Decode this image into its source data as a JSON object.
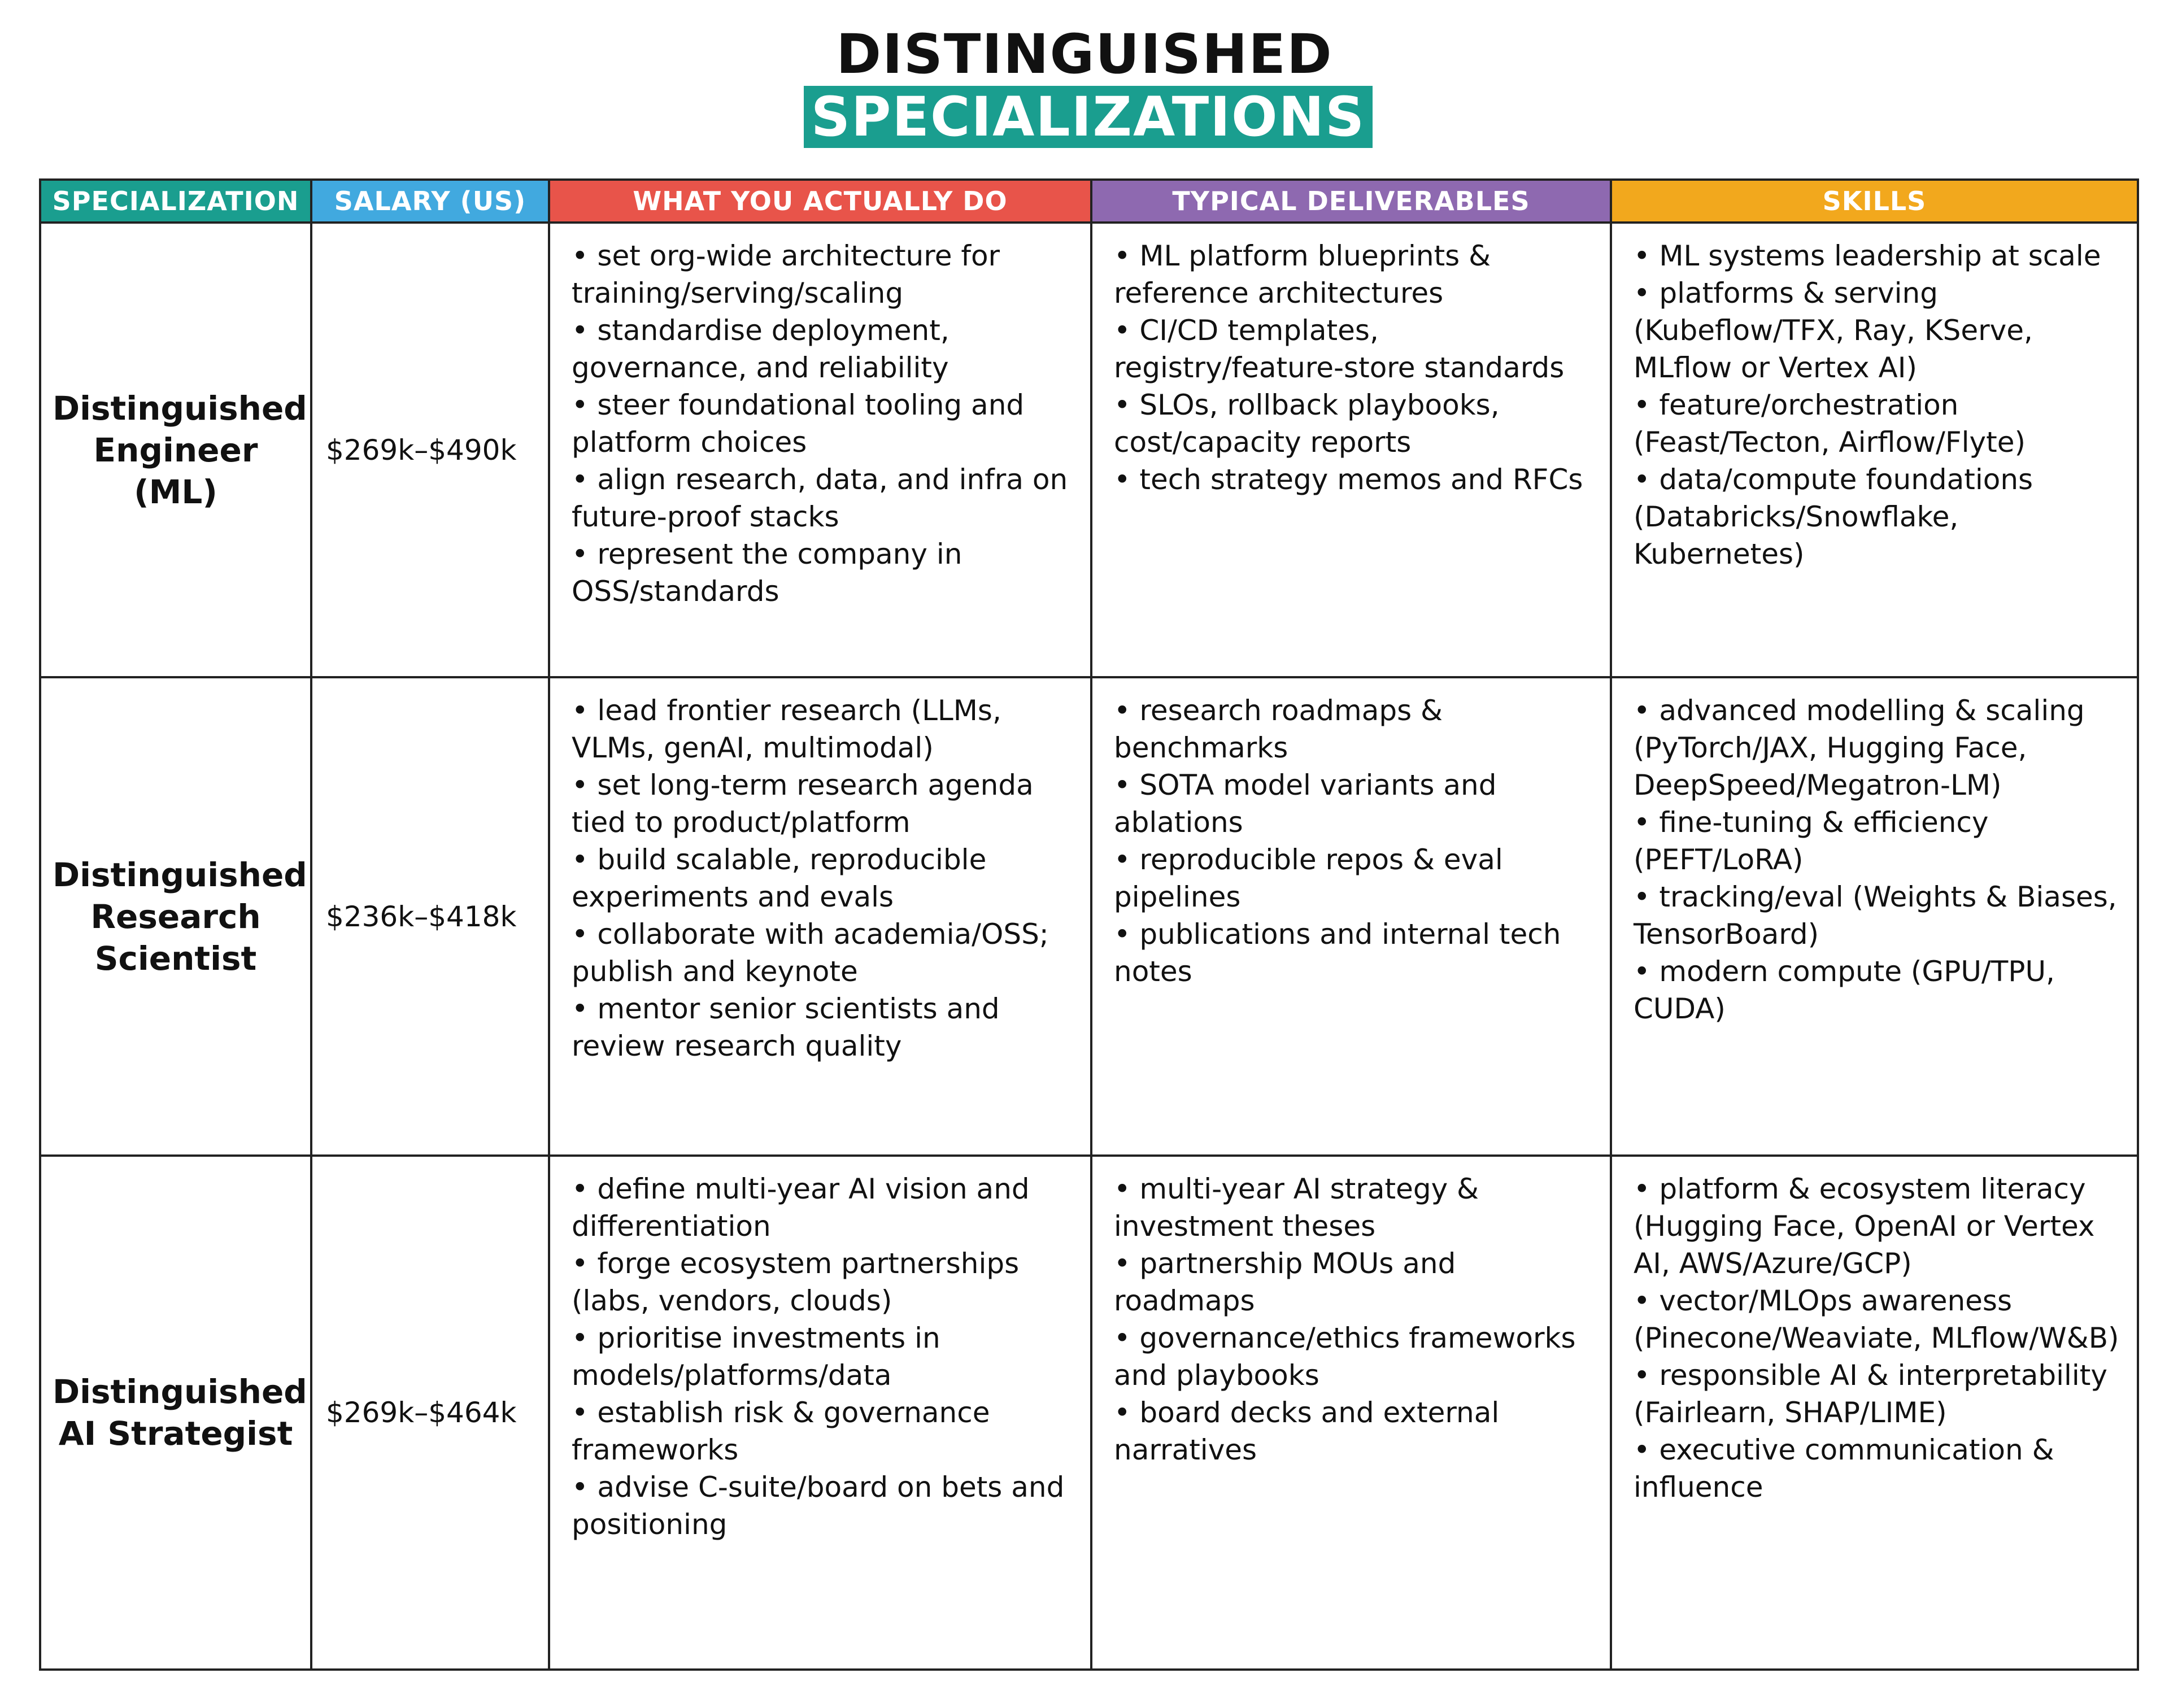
{
  "header": {
    "title": "DISTINGUISHED",
    "subtitle": "SPECIALIZATIONS"
  },
  "table": {
    "columns": [
      "SPECIALIZATION",
      "SALARY (US)",
      "WHAT YOU ACTUALLY DO",
      "TYPICAL DELIVERABLES",
      "SKILLS"
    ],
    "rows": [
      {
        "specialization": "Distinguished Engineer (ML)",
        "salary": "$269k–$490k",
        "what": [
          "set org-wide architecture for training/serving/scaling",
          "standardise deployment, governance, and reliability",
          "steer foundational tooling and platform choices",
          "align research, data, and infra on future-proof stacks",
          "represent the company in OSS/standards"
        ],
        "deliverables": [
          "ML platform blueprints & reference architectures",
          "CI/CD templates, registry/feature-store standards",
          "SLOs, rollback playbooks, cost/capacity reports",
          "tech strategy memos and RFCs"
        ],
        "skills": [
          "ML systems leadership at scale",
          "platforms & serving (Kubeflow/TFX, Ray, KServe, MLflow or Vertex AI)",
          "feature/orchestration (Feast/Tecton, Airflow/Flyte)",
          "data/compute foundations (Databricks/Snowflake, Kubernetes)"
        ]
      },
      {
        "specialization": "Distinguished Research Scientist",
        "salary": "$236k–$418k",
        "what": [
          "lead frontier research (LLMs, VLMs, genAI, multimodal)",
          "set long-term research agenda tied to product/platform",
          "build scalable, reproducible experiments and evals",
          "collaborate with academia/OSS; publish and keynote",
          "mentor senior scientists and review research quality"
        ],
        "deliverables": [
          "research roadmaps & benchmarks",
          "SOTA model variants and ablations",
          "reproducible repos & eval pipelines",
          "publications and internal tech notes"
        ],
        "skills": [
          "advanced modelling & scaling (PyTorch/JAX, Hugging Face, DeepSpeed/Megatron-LM)",
          "fine-tuning & efficiency (PEFT/LoRA)",
          "tracking/eval (Weights & Biases, TensorBoard)",
          "modern compute (GPU/TPU, CUDA)"
        ]
      },
      {
        "specialization": "Distinguished AI Strategist",
        "salary": "$269k–$464k",
        "what": [
          "define multi-year AI vision and differentiation",
          "forge ecosystem partnerships (labs, vendors, clouds)",
          "prioritise investments in models/platforms/data",
          "establish risk & governance frameworks",
          "advise C-suite/board on bets and positioning"
        ],
        "deliverables": [
          "multi-year AI strategy & investment theses",
          "partnership MOUs and roadmaps",
          "governance/ethics frameworks and playbooks",
          "board decks and external narratives"
        ],
        "skills": [
          "platform & ecosystem literacy (Hugging Face, OpenAI or Vertex AI, AWS/Azure/GCP)",
          "vector/MLOps awareness (Pinecone/Weaviate, MLflow/W&B)",
          "responsible AI & interpretability (Fairlearn, SHAP/LIME)",
          "executive communication & influence"
        ]
      }
    ]
  }
}
